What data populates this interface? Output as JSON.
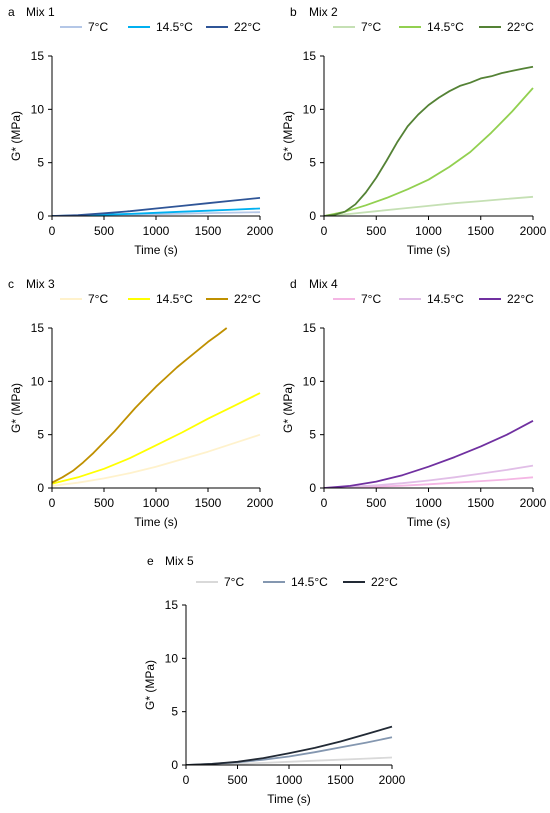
{
  "figure": {
    "panels": [
      {
        "letter": "a",
        "title": "Mix 1"
      },
      {
        "letter": "b",
        "title": "Mix 2"
      },
      {
        "letter": "c",
        "title": "Mix 3"
      },
      {
        "letter": "d",
        "title": "Mix 4"
      },
      {
        "letter": "e",
        "title": "Mix 5"
      }
    ]
  },
  "chart_data": [
    {
      "panel": "a",
      "title": "Mix 1",
      "type": "line",
      "xlabel": "Time (s)",
      "ylabel": "G* (MPa)",
      "xlim": [
        0,
        2000
      ],
      "ylim": [
        0,
        15
      ],
      "xticks": [
        0,
        500,
        1000,
        1500,
        2000
      ],
      "yticks": [
        0,
        5,
        10,
        15
      ],
      "grid": false,
      "legend_position": "top",
      "series": [
        {
          "name": "7°C",
          "color": "#b4c7e7",
          "x": [
            0,
            250,
            500,
            750,
            1000,
            1250,
            1500,
            1750,
            2000
          ],
          "y": [
            0,
            0.03,
            0.07,
            0.12,
            0.17,
            0.22,
            0.27,
            0.32,
            0.36
          ]
        },
        {
          "name": "14.5°C",
          "color": "#00b0f0",
          "x": [
            0,
            250,
            500,
            750,
            1000,
            1250,
            1500,
            1750,
            2000
          ],
          "y": [
            0,
            0.05,
            0.12,
            0.2,
            0.3,
            0.4,
            0.5,
            0.6,
            0.7
          ]
        },
        {
          "name": "22°C",
          "color": "#2f5597",
          "x": [
            0,
            250,
            500,
            750,
            1000,
            1250,
            1500,
            1750,
            2000
          ],
          "y": [
            0,
            0.08,
            0.25,
            0.45,
            0.7,
            0.95,
            1.2,
            1.45,
            1.7
          ]
        }
      ]
    },
    {
      "panel": "b",
      "title": "Mix 2",
      "type": "line",
      "xlabel": "Time (s)",
      "ylabel": "G* (MPa)",
      "xlim": [
        0,
        2000
      ],
      "ylim": [
        0,
        15
      ],
      "xticks": [
        0,
        500,
        1000,
        1500,
        2000
      ],
      "yticks": [
        0,
        5,
        10,
        15
      ],
      "grid": false,
      "legend_position": "top",
      "series": [
        {
          "name": "7°C",
          "color": "#c5e0b4",
          "x": [
            0,
            250,
            500,
            750,
            1000,
            1250,
            1500,
            1750,
            2000
          ],
          "y": [
            0,
            0.2,
            0.45,
            0.7,
            0.95,
            1.2,
            1.4,
            1.6,
            1.8
          ]
        },
        {
          "name": "14.5°C",
          "color": "#92d050",
          "x": [
            0,
            200,
            400,
            600,
            800,
            1000,
            1200,
            1400,
            1600,
            1800,
            2000
          ],
          "y": [
            0,
            0.4,
            1.0,
            1.7,
            2.5,
            3.4,
            4.6,
            6.0,
            7.8,
            9.8,
            12.0
          ]
        },
        {
          "name": "22°C",
          "color": "#548235",
          "x": [
            0,
            100,
            200,
            300,
            400,
            500,
            600,
            700,
            800,
            900,
            1000,
            1100,
            1200,
            1300,
            1400,
            1500,
            1600,
            1700,
            1800,
            1900,
            2000
          ],
          "y": [
            0,
            0.1,
            0.4,
            1.1,
            2.2,
            3.6,
            5.2,
            6.9,
            8.4,
            9.5,
            10.4,
            11.1,
            11.7,
            12.2,
            12.5,
            12.9,
            13.1,
            13.4,
            13.6,
            13.8,
            14.0
          ]
        }
      ]
    },
    {
      "panel": "c",
      "title": "Mix 3",
      "type": "line",
      "xlabel": "Time (s)",
      "ylabel": "G* (MPa)",
      "xlim": [
        0,
        2000
      ],
      "ylim": [
        0,
        15
      ],
      "xticks": [
        0,
        500,
        1000,
        1500,
        2000
      ],
      "yticks": [
        0,
        5,
        10,
        15
      ],
      "grid": false,
      "legend_position": "top",
      "series": [
        {
          "name": "7°C",
          "color": "#fff2cc",
          "x": [
            0,
            250,
            500,
            750,
            1000,
            1250,
            1500,
            1750,
            2000
          ],
          "y": [
            0.2,
            0.5,
            0.9,
            1.4,
            2.0,
            2.7,
            3.4,
            4.2,
            5.0
          ]
        },
        {
          "name": "14.5°C",
          "color": "#ffff00",
          "x": [
            0,
            250,
            500,
            750,
            1000,
            1250,
            1500,
            1750,
            2000
          ],
          "y": [
            0.4,
            1.0,
            1.8,
            2.8,
            4.0,
            5.2,
            6.5,
            7.7,
            8.9
          ]
        },
        {
          "name": "22°C",
          "color": "#bf9000",
          "x": [
            0,
            100,
            200,
            300,
            400,
            500,
            600,
            700,
            800,
            900,
            1000,
            1100,
            1200,
            1300,
            1400,
            1500,
            1600,
            1680
          ],
          "y": [
            0.5,
            1.0,
            1.6,
            2.4,
            3.3,
            4.3,
            5.3,
            6.4,
            7.5,
            8.5,
            9.5,
            10.4,
            11.3,
            12.1,
            12.9,
            13.7,
            14.4,
            15.0
          ]
        }
      ]
    },
    {
      "panel": "d",
      "title": "Mix 4",
      "type": "line",
      "xlabel": "Time (s)",
      "ylabel": "G* (MPa)",
      "xlim": [
        0,
        2000
      ],
      "ylim": [
        0,
        15
      ],
      "xticks": [
        0,
        500,
        1000,
        1500,
        2000
      ],
      "yticks": [
        0,
        5,
        10,
        15
      ],
      "grid": false,
      "legend_position": "top",
      "series": [
        {
          "name": "7°C",
          "color": "#f4b6e4",
          "x": [
            0,
            250,
            500,
            750,
            1000,
            1250,
            1500,
            1750,
            2000
          ],
          "y": [
            0,
            0.05,
            0.12,
            0.22,
            0.35,
            0.5,
            0.65,
            0.8,
            1.0
          ]
        },
        {
          "name": "14.5°C",
          "color": "#e1bee7",
          "x": [
            0,
            250,
            500,
            750,
            1000,
            1250,
            1500,
            1750,
            2000
          ],
          "y": [
            0,
            0.1,
            0.25,
            0.45,
            0.7,
            1.0,
            1.35,
            1.7,
            2.1
          ]
        },
        {
          "name": "22°C",
          "color": "#7030a0",
          "x": [
            0,
            250,
            500,
            750,
            1000,
            1250,
            1500,
            1750,
            2000
          ],
          "y": [
            0,
            0.2,
            0.6,
            1.2,
            2.0,
            2.9,
            3.9,
            5.0,
            6.3
          ]
        }
      ]
    },
    {
      "panel": "e",
      "title": "Mix 5",
      "type": "line",
      "xlabel": "Time (s)",
      "ylabel": "G* (MPa)",
      "xlim": [
        0,
        2000
      ],
      "ylim": [
        0,
        15
      ],
      "xticks": [
        0,
        500,
        1000,
        1500,
        2000
      ],
      "yticks": [
        0,
        5,
        10,
        15
      ],
      "grid": false,
      "legend_position": "top",
      "series": [
        {
          "name": "7°C",
          "color": "#d9d9d9",
          "x": [
            0,
            250,
            500,
            750,
            1000,
            1250,
            1500,
            1750,
            2000
          ],
          "y": [
            0,
            0.05,
            0.1,
            0.2,
            0.3,
            0.4,
            0.5,
            0.6,
            0.7
          ]
        },
        {
          "name": "14.5°C",
          "color": "#8497b0",
          "x": [
            0,
            250,
            500,
            750,
            1000,
            1250,
            1500,
            1750,
            2000
          ],
          "y": [
            0,
            0.1,
            0.25,
            0.5,
            0.8,
            1.2,
            1.65,
            2.1,
            2.6
          ]
        },
        {
          "name": "22°C",
          "color": "#222a35",
          "x": [
            0,
            250,
            500,
            750,
            1000,
            1250,
            1500,
            1750,
            2000
          ],
          "y": [
            0,
            0.1,
            0.3,
            0.65,
            1.1,
            1.6,
            2.2,
            2.9,
            3.6
          ]
        }
      ]
    }
  ]
}
